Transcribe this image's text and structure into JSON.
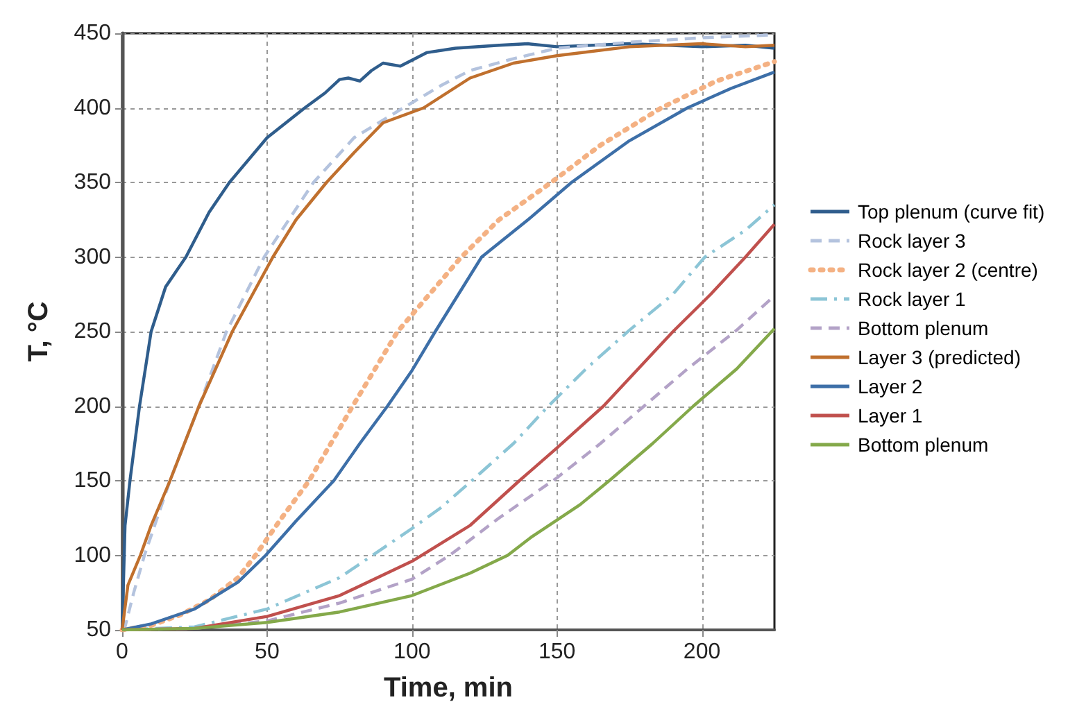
{
  "chart_data": {
    "type": "line",
    "xlabel": "Time, min",
    "ylabel": "T, °C",
    "xlim": [
      0,
      225
    ],
    "xticks": [
      0,
      50,
      100,
      150,
      200
    ],
    "ylim": [
      50,
      450
    ],
    "yticks": [
      50,
      100,
      150,
      200,
      250,
      300,
      350,
      400,
      450
    ],
    "grid": true,
    "legend": "right",
    "marker": "none",
    "series": [
      {
        "name": "Top plenum (curve fit)",
        "color": "#2f5d8c",
        "line_style": "solid",
        "x": [
          0,
          1,
          2.7,
          6,
          10,
          15,
          22,
          30,
          37,
          50,
          63,
          70,
          75,
          78,
          82,
          86,
          90,
          96,
          100,
          105,
          115,
          130,
          140,
          150,
          175,
          200,
          215,
          225
        ],
        "values": [
          50,
          120,
          150,
          200,
          250,
          280,
          300,
          330,
          350,
          380,
          400,
          410,
          419,
          420,
          418,
          425,
          430,
          428,
          432,
          437,
          440,
          442,
          443,
          441,
          443,
          441,
          442,
          440
        ]
      },
      {
        "name": "Rock layer 3",
        "color": "#b4c3de",
        "line_style": "dashed",
        "x": [
          0,
          1,
          4,
          7.7,
          16.5,
          26.5,
          36,
          49,
          66,
          80,
          97,
          110,
          120,
          135,
          150,
          175,
          200,
          225
        ],
        "values": [
          50,
          52,
          75,
          100,
          150,
          200,
          250,
          300,
          350,
          380,
          400,
          415,
          425,
          433,
          440,
          444,
          447,
          449
        ]
      },
      {
        "name": "Rock layer 2 (centre)",
        "color": "#f4b183",
        "line_style": "dotted",
        "x": [
          0,
          10,
          20,
          30,
          40,
          46,
          55,
          64.5,
          72,
          79.5,
          95,
          117,
          130,
          148,
          165,
          186,
          205,
          225
        ],
        "values": [
          50,
          53,
          60,
          70,
          85,
          100,
          125,
          150,
          175,
          200,
          250,
          300,
          325,
          350,
          375,
          400,
          418,
          431
        ]
      },
      {
        "name": "Rock layer 1",
        "color": "#8cc5d6",
        "line_style": "dashdot",
        "x": [
          0,
          25,
          50,
          75,
          100,
          110,
          120.6,
          135,
          147,
          160,
          175,
          190,
          201,
          215,
          225
        ],
        "values": [
          50,
          52,
          64,
          85,
          118,
          132,
          150,
          175,
          200,
          225,
          251,
          275,
          300,
          318,
          335
        ]
      },
      {
        "name": "Bottom plenum",
        "color": "#b3a2c7",
        "line_style": "dashed",
        "x": [
          0,
          25,
          50,
          75,
          100,
          113,
          130,
          150,
          165,
          180,
          195,
          212,
          225
        ],
        "values": [
          50,
          51,
          56,
          68,
          84,
          100,
          125,
          152,
          175,
          200,
          225,
          251,
          274
        ]
      },
      {
        "name": "Layer 3 (predicted)",
        "color": "#c0702e",
        "line_style": "solid",
        "x": [
          0,
          2,
          6.3,
          10,
          16.5,
          26.5,
          38,
          52,
          60,
          70.5,
          80,
          90,
          104,
          120,
          135,
          150,
          175,
          200,
          215,
          225
        ],
        "values": [
          50,
          80,
          100,
          120,
          150,
          200,
          250,
          300,
          325,
          350,
          370,
          390,
          400,
          420,
          430,
          435,
          441,
          443,
          441,
          442
        ]
      },
      {
        "name": "Layer 2",
        "color": "#3d6fa8",
        "line_style": "solid",
        "x": [
          0,
          10,
          25,
          40,
          49.5,
          60,
          73,
          82,
          91.5,
          100,
          108,
          124,
          140,
          155,
          175,
          195,
          210,
          225
        ],
        "values": [
          50,
          54,
          64,
          82,
          100,
          123,
          150,
          175,
          200,
          224,
          250,
          300,
          325,
          350,
          378,
          400,
          413,
          424
        ]
      },
      {
        "name": "Layer 1",
        "color": "#c0504d",
        "line_style": "solid",
        "x": [
          0,
          25,
          50,
          75,
          100,
          120,
          137,
          150,
          166,
          178,
          190,
          203,
          215,
          225
        ],
        "values": [
          50,
          51,
          59,
          73,
          96,
          120,
          150,
          172,
          200,
          225,
          250,
          275,
          300,
          322
        ]
      },
      {
        "name": "Bottom plenum",
        "color": "#84a94a",
        "line_style": "solid",
        "x": [
          0,
          25,
          50,
          75,
          100,
          120,
          133,
          141,
          158,
          168,
          183,
          197,
          212,
          225
        ],
        "values": [
          50,
          51,
          55,
          62,
          73,
          88,
          100,
          112,
          134,
          150,
          175,
          200,
          225,
          252
        ]
      }
    ]
  }
}
